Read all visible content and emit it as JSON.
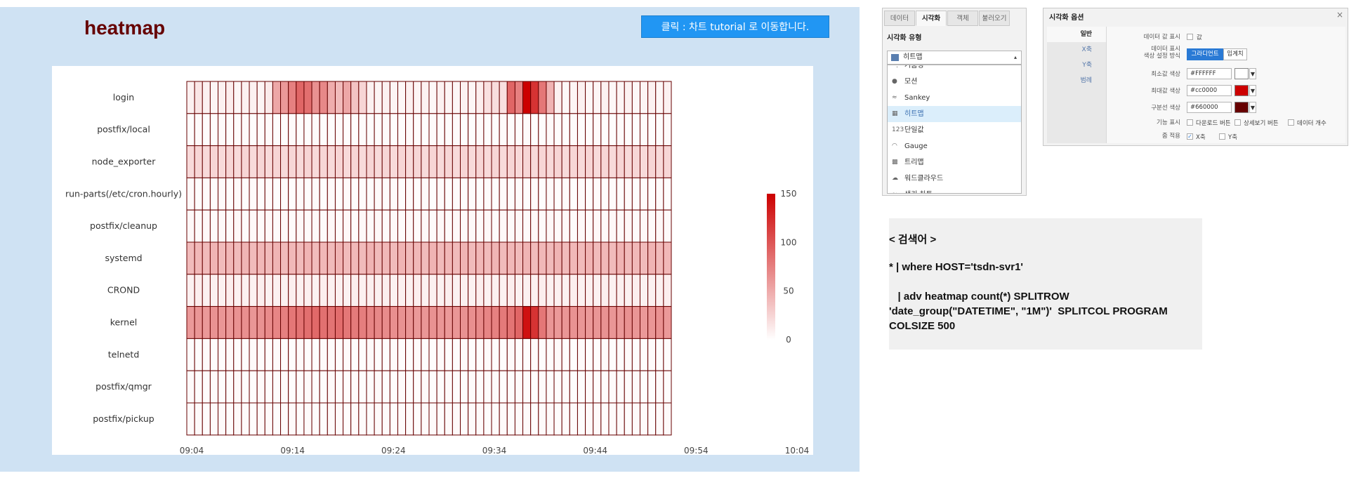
{
  "heatmap_panel": {
    "title": "heatmap",
    "tutorial_button": "클릭 : 차트 tutorial 로 이동합니다."
  },
  "chart_data": {
    "type": "heatmap",
    "title": "",
    "rows": [
      "login",
      "postfix/local",
      "node_exporter",
      "run-parts(/etc/cron.hourly)",
      "postfix/cleanup",
      "systemd",
      "CROND",
      "kernel",
      "telnetd",
      "postfix/qmgr",
      "postfix/pickup"
    ],
    "x_ticks": [
      "09:04",
      "09:14",
      "09:24",
      "09:34",
      "09:44",
      "09:54",
      "10:04"
    ],
    "colorscale": {
      "min_color": "#FFFFFF",
      "max_color": "#cc0000",
      "border_color": "#660000",
      "min": 0,
      "max": 150
    },
    "legend_ticks": [
      150,
      100,
      50,
      0
    ],
    "values": [
      [
        8,
        15,
        8,
        6,
        8,
        10,
        5,
        8,
        8,
        6,
        12,
        52,
        60,
        75,
        90,
        85,
        65,
        70,
        48,
        40,
        52,
        35,
        25,
        8,
        6,
        8,
        6,
        5,
        8,
        6,
        8,
        5,
        8,
        6,
        5,
        8,
        6,
        10,
        18,
        20,
        18,
        90,
        75,
        150,
        120,
        80,
        45,
        8,
        5,
        6,
        8,
        5,
        6,
        8,
        5,
        6,
        8,
        5,
        6,
        8,
        5,
        8
      ],
      [
        2,
        3,
        2,
        2,
        3,
        2,
        2,
        3,
        2,
        2,
        3,
        2,
        2,
        3,
        2,
        2,
        3,
        2,
        2,
        3,
        2,
        2,
        3,
        2,
        2,
        3,
        2,
        2,
        3,
        2,
        2,
        3,
        2,
        2,
        3,
        2,
        2,
        3,
        2,
        2,
        3,
        2,
        2,
        3,
        2,
        2,
        3,
        2,
        2,
        3,
        2,
        2,
        3,
        2,
        2,
        3,
        2,
        2,
        3,
        2,
        2,
        3
      ],
      [
        22,
        24,
        22,
        25,
        22,
        24,
        22,
        25,
        22,
        24,
        22,
        25,
        22,
        24,
        22,
        25,
        22,
        24,
        22,
        25,
        22,
        24,
        22,
        25,
        22,
        24,
        22,
        25,
        22,
        24,
        22,
        25,
        22,
        24,
        22,
        25,
        22,
        24,
        22,
        25,
        22,
        24,
        22,
        25,
        22,
        24,
        22,
        25,
        22,
        24,
        22,
        25,
        22,
        24,
        22,
        25,
        22,
        24,
        22,
        25,
        22,
        24
      ],
      [
        3,
        2,
        3,
        2,
        3,
        2,
        3,
        2,
        3,
        2,
        3,
        2,
        3,
        2,
        3,
        2,
        3,
        2,
        3,
        2,
        3,
        2,
        3,
        2,
        3,
        2,
        3,
        2,
        3,
        2,
        3,
        2,
        3,
        2,
        3,
        2,
        3,
        2,
        3,
        2,
        3,
        2,
        3,
        2,
        3,
        2,
        3,
        2,
        3,
        2,
        3,
        2,
        3,
        2,
        3,
        2,
        3,
        2,
        3,
        2,
        3,
        2
      ],
      [
        4,
        3,
        4,
        3,
        4,
        3,
        4,
        3,
        4,
        3,
        4,
        3,
        4,
        3,
        4,
        3,
        4,
        3,
        4,
        3,
        4,
        3,
        4,
        3,
        4,
        3,
        4,
        3,
        4,
        3,
        4,
        3,
        4,
        3,
        4,
        3,
        4,
        3,
        4,
        3,
        4,
        3,
        4,
        3,
        4,
        3,
        4,
        3,
        4,
        3,
        4,
        3,
        4,
        3,
        4,
        3,
        4,
        3,
        4,
        3,
        4,
        3
      ],
      [
        40,
        42,
        40,
        44,
        40,
        42,
        40,
        44,
        40,
        42,
        40,
        44,
        40,
        42,
        40,
        44,
        40,
        42,
        40,
        44,
        40,
        42,
        40,
        44,
        40,
        42,
        40,
        44,
        40,
        42,
        40,
        44,
        40,
        42,
        40,
        44,
        40,
        42,
        40,
        44,
        40,
        42,
        40,
        44,
        40,
        42,
        40,
        44,
        40,
        42,
        40,
        44,
        40,
        42,
        40,
        44,
        40,
        42,
        40,
        44,
        40,
        42
      ],
      [
        8,
        10,
        8,
        9,
        8,
        10,
        8,
        9,
        8,
        10,
        8,
        9,
        8,
        10,
        8,
        9,
        8,
        10,
        8,
        9,
        8,
        10,
        8,
        9,
        8,
        10,
        8,
        9,
        8,
        10,
        8,
        9,
        8,
        10,
        8,
        9,
        8,
        10,
        8,
        9,
        8,
        10,
        8,
        9,
        8,
        10,
        8,
        9,
        8,
        10,
        8,
        9,
        8,
        10,
        8,
        9,
        8,
        10,
        8,
        9,
        8,
        10
      ],
      [
        60,
        62,
        60,
        64,
        62,
        60,
        64,
        66,
        62,
        64,
        68,
        72,
        75,
        80,
        82,
        85,
        88,
        84,
        82,
        86,
        80,
        78,
        76,
        72,
        70,
        68,
        66,
        64,
        62,
        60,
        62,
        64,
        62,
        60,
        62,
        64,
        66,
        68,
        72,
        74,
        78,
        82,
        90,
        140,
        120,
        80,
        62,
        60,
        62,
        64,
        62,
        60,
        62,
        64,
        62,
        60,
        64,
        62,
        60,
        62,
        64,
        60
      ],
      [
        2,
        2,
        3,
        2,
        2,
        3,
        2,
        2,
        3,
        2,
        2,
        3,
        2,
        2,
        3,
        2,
        2,
        3,
        2,
        2,
        3,
        2,
        2,
        3,
        2,
        2,
        3,
        2,
        2,
        3,
        2,
        2,
        3,
        2,
        2,
        3,
        2,
        2,
        3,
        2,
        2,
        3,
        2,
        2,
        3,
        2,
        2,
        3,
        2,
        2,
        3,
        2,
        2,
        3,
        2,
        2,
        3,
        2,
        2,
        3,
        2,
        2
      ],
      [
        3,
        2,
        2,
        3,
        2,
        2,
        3,
        2,
        2,
        3,
        2,
        2,
        3,
        2,
        2,
        3,
        2,
        2,
        3,
        2,
        2,
        3,
        2,
        2,
        3,
        2,
        2,
        3,
        2,
        2,
        3,
        2,
        2,
        3,
        2,
        2,
        3,
        2,
        2,
        3,
        2,
        2,
        3,
        2,
        2,
        3,
        2,
        2,
        3,
        2,
        2,
        3,
        2,
        2,
        3,
        2,
        2,
        3,
        2,
        2,
        3,
        2
      ],
      [
        3,
        3,
        2,
        3,
        3,
        2,
        3,
        3,
        2,
        3,
        3,
        2,
        3,
        3,
        2,
        3,
        3,
        2,
        3,
        3,
        2,
        3,
        3,
        2,
        3,
        3,
        2,
        3,
        3,
        2,
        3,
        3,
        2,
        3,
        3,
        2,
        3,
        3,
        2,
        3,
        3,
        2,
        3,
        3,
        2,
        3,
        3,
        2,
        3,
        3,
        2,
        3,
        3,
        2,
        3,
        3,
        2,
        3,
        3,
        2,
        3,
        3
      ]
    ]
  },
  "viz_type_panel": {
    "tabs": [
      "데이터",
      "시각화",
      "객체",
      "불러오기"
    ],
    "active_tab": "시각화",
    "section_title": "시각화 유형",
    "selected": "히트맵",
    "options": [
      {
        "icon": "funnel-chart-icon",
        "glyph": "⋱",
        "label": "거품형"
      },
      {
        "icon": "motion-chart-icon",
        "glyph": "●",
        "label": "모션"
      },
      {
        "icon": "sankey-chart-icon",
        "glyph": "≈",
        "label": "Sankey"
      },
      {
        "icon": "heatmap-chart-icon",
        "glyph": "▦",
        "label": "히트맵"
      },
      {
        "icon": "single-value-icon",
        "glyph": "123",
        "label": "단일값"
      },
      {
        "icon": "gauge-chart-icon",
        "glyph": "◠",
        "label": "Gauge"
      },
      {
        "icon": "treemap-chart-icon",
        "glyph": "▩",
        "label": "트리맵"
      },
      {
        "icon": "wordcloud-chart-icon",
        "glyph": "☁",
        "label": "워드클라우드"
      },
      {
        "icon": "more-chart-icon",
        "glyph": "≈",
        "label": "생키 차트"
      }
    ],
    "highlighted": "히트맵"
  },
  "viz_options_panel": {
    "title": "시각화 옵션",
    "close_glyph": "×",
    "side_tabs": [
      "일반",
      "X축",
      "Y축",
      "범례"
    ],
    "active_side_tab": "일반",
    "show_values_label": "데이터 값 표시",
    "show_values_option": "값",
    "color_mode_label_line1": "데이터 표시",
    "color_mode_label_line2": "색상 설정 방식",
    "color_mode_options": [
      "그라디언트",
      "임계치"
    ],
    "color_mode_selected": "그라디언트",
    "min_color_label": "최소값 색상",
    "min_color_value": "#FFFFFF",
    "max_color_label": "최대값 색상",
    "max_color_value": "#cc0000",
    "border_color_label": "구분선 색상",
    "border_color_value": "#660000",
    "feature_label": "기능 표시",
    "feature_options": [
      "다운로드 버튼",
      "상세보기 버튼",
      "데이터 개수"
    ],
    "zoom_label": "줌 적용",
    "zoom_options": [
      "X축",
      "Y축"
    ],
    "dropdown_glyph": "▼"
  },
  "query_box": {
    "line1": "< 검색어 >",
    "line2": "* | where HOST='tsdn-svr1'",
    "line3": "   | adv heatmap count(*) SPLITROW",
    "line4": "'date_group(\"DATETIME\", \"1M\")'  SPLITCOL PROGRAM",
    "line5": "COLSIZE 500"
  }
}
